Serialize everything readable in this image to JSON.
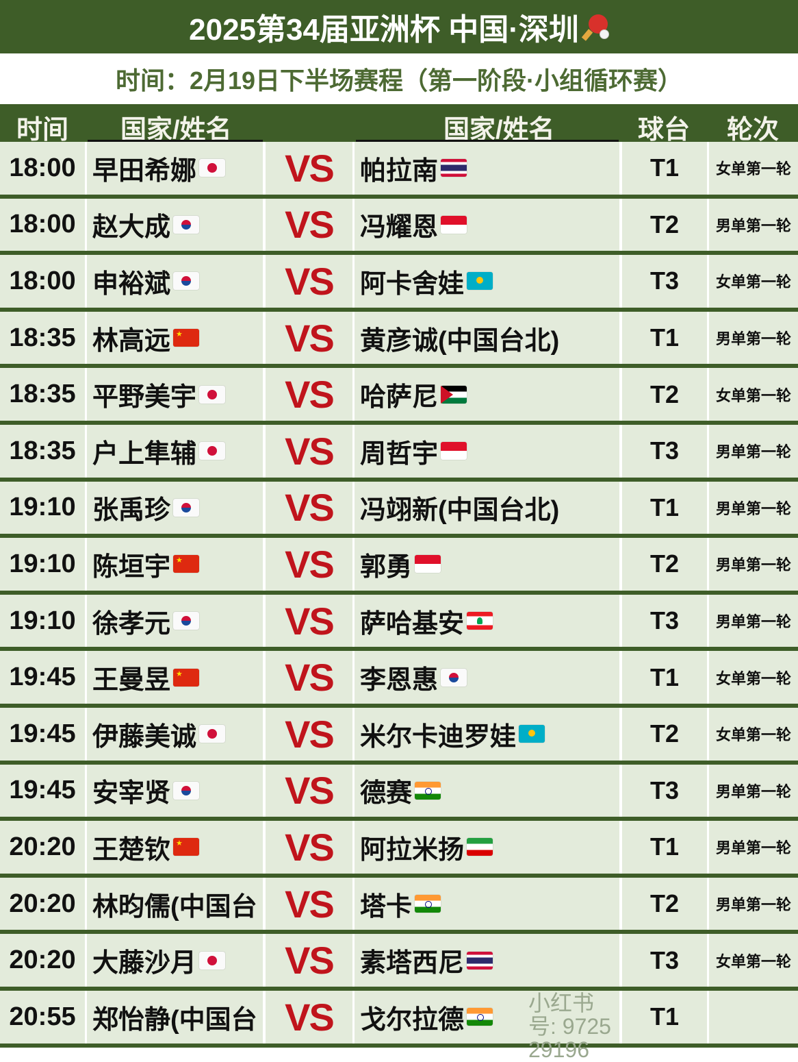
{
  "title": "2025第34届亚洲杯 中国·深圳",
  "title_icon": "ping-pong-paddle-icon",
  "subtitle": "时间：2月19日下半场赛程（第一阶段·小组循环赛）",
  "header": {
    "time": "时间",
    "player1": "国家/姓名",
    "player2": "国家/姓名",
    "table": "球台",
    "round": "轮次"
  },
  "vs_label": "VS",
  "colors": {
    "header_bg": "#3e5d28",
    "cell_bg": "#e3ebdb",
    "vs": "#c0141c",
    "subtitle": "#4d6a33"
  },
  "matches": [
    {
      "time": "18:00",
      "p1": "早田希娜",
      "f1": "jp",
      "p2": "帕拉南",
      "f2": "th",
      "table": "T1",
      "round": "女单第一轮"
    },
    {
      "time": "18:00",
      "p1": "赵大成",
      "f1": "kr",
      "p2": "冯耀恩",
      "f2": "sg",
      "table": "T2",
      "round": "男单第一轮"
    },
    {
      "time": "18:00",
      "p1": "申裕斌",
      "f1": "kr",
      "p2": "阿卡舍娃",
      "f2": "kz",
      "table": "T3",
      "round": "女单第一轮"
    },
    {
      "time": "18:35",
      "p1": "林高远",
      "f1": "cn",
      "p2": "黄彦诚(中国台北)",
      "f2": "",
      "table": "T1",
      "round": "男单第一轮"
    },
    {
      "time": "18:35",
      "p1": "平野美宇",
      "f1": "jp",
      "p2": "哈萨尼",
      "f2": "jo",
      "table": "T2",
      "round": "女单第一轮"
    },
    {
      "time": "18:35",
      "p1": "户上隼辅",
      "f1": "jp",
      "p2": "周哲宇",
      "f2": "sg",
      "table": "T3",
      "round": "男单第一轮"
    },
    {
      "time": "19:10",
      "p1": "张禹珍",
      "f1": "kr",
      "p2": "冯翊新(中国台北)",
      "f2": "",
      "table": "T1",
      "round": "男单第一轮"
    },
    {
      "time": "19:10",
      "p1": "陈垣宇",
      "f1": "cn",
      "p2": "郭勇",
      "f2": "sg",
      "table": "T2",
      "round": "男单第一轮"
    },
    {
      "time": "19:10",
      "p1": "徐孝元",
      "f1": "kr",
      "p2": "萨哈基安",
      "f2": "lb",
      "table": "T3",
      "round": "男单第一轮"
    },
    {
      "time": "19:45",
      "p1": "王曼昱",
      "f1": "cn",
      "p2": "李恩惠",
      "f2": "kr",
      "table": "T1",
      "round": "女单第一轮"
    },
    {
      "time": "19:45",
      "p1": "伊藤美诚",
      "f1": "jp",
      "p2": "米尔卡迪罗娃",
      "f2": "kz",
      "table": "T2",
      "round": "女单第一轮"
    },
    {
      "time": "19:45",
      "p1": "安宰贤",
      "f1": "kr",
      "p2": "德赛",
      "f2": "in",
      "table": "T3",
      "round": "男单第一轮"
    },
    {
      "time": "20:20",
      "p1": "王楚钦",
      "f1": "cn",
      "p2": "阿拉米扬",
      "f2": "ir",
      "table": "T1",
      "round": "男单第一轮"
    },
    {
      "time": "20:20",
      "p1": "林昀儒(中国台",
      "f1": "",
      "p2": "塔卡",
      "f2": "in",
      "table": "T2",
      "round": "男单第一轮"
    },
    {
      "time": "20:20",
      "p1": "大藤沙月",
      "f1": "jp",
      "p2": "素塔西尼",
      "f2": "th",
      "table": "T3",
      "round": "女单第一轮"
    },
    {
      "time": "20:55",
      "p1": "郑怡静(中国台",
      "f1": "",
      "p2": "戈尔拉德",
      "f2": "in",
      "table": "T1",
      "round": ""
    }
  ],
  "watermark": "小红书号: 972529196"
}
